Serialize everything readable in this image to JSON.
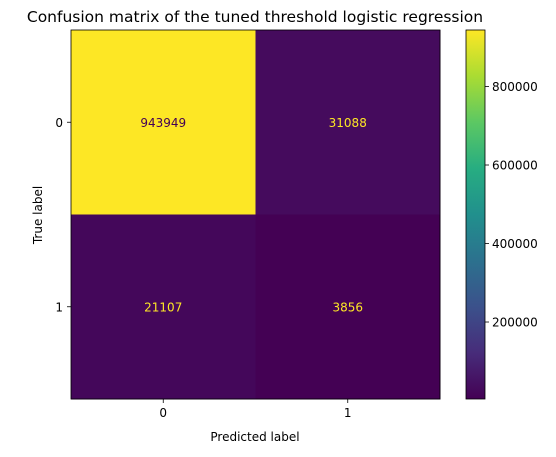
{
  "chart_data": {
    "type": "heatmap",
    "title": "Confusion matrix of the tuned threshold logistic regression",
    "xlabel": "Predicted label",
    "ylabel": "True label",
    "x_categories": [
      "0",
      "1"
    ],
    "y_categories": [
      "0",
      "1"
    ],
    "values": [
      [
        943949,
        31088
      ],
      [
        21107,
        3856
      ]
    ],
    "colormap": "viridis",
    "text_color_low": "#fde725",
    "text_color_high": "#440154",
    "colorbar": {
      "min": 3856,
      "max": 943949,
      "ticks": [
        200000,
        400000,
        600000,
        800000
      ],
      "tick_labels": [
        "200000",
        "400000",
        "600000",
        "800000"
      ]
    },
    "grid": false
  }
}
